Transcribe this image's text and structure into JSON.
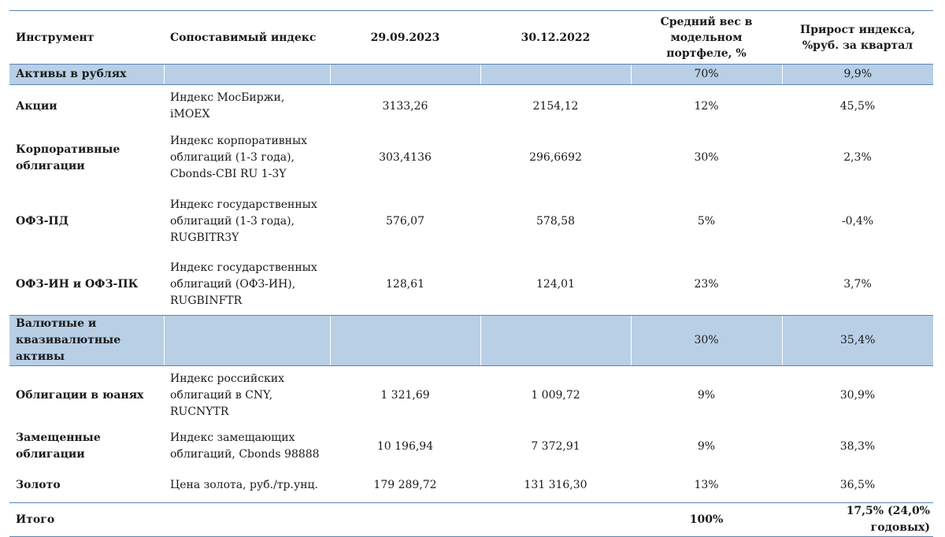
{
  "headers": [
    "Инструмент",
    "Сопоставимый индекс",
    "29.09.2023",
    "30.12.2022",
    "Средний вес в модельном портфеле, %",
    "Прирост индекса, %руб. за квартал"
  ],
  "group_rub": {
    "name": "Активы в рублях",
    "weight": "70%",
    "growth": "9,9%"
  },
  "rub_rows": [
    {
      "name": "Акции",
      "index": "Индекс МосБиржи, iMOEX",
      "v2023": "3133,26",
      "v2022": "2154,12",
      "weight": "12%",
      "growth": "45,5%"
    },
    {
      "name": "Корпоративные облигации",
      "index": "Индекс корпоративных облигаций (1-3 года), Cbonds-CBI RU 1-3Y",
      "v2023": "303,4136",
      "v2022": "296,6692",
      "weight": "30%",
      "growth": "2,3%"
    },
    {
      "name": "ОФЗ-ПД",
      "index": "Индекс государственных облигаций (1-3 года), RUGBITR3Y",
      "v2023": "576,07",
      "v2022": "578,58",
      "weight": "5%",
      "growth": "-0,4%"
    },
    {
      "name": "ОФЗ-ИН и ОФЗ-ПК",
      "index": "Индекс государственных облигаций (ОФЗ-ИН), RUGBINFTR",
      "v2023": "128,61",
      "v2022": "124,01",
      "weight": "23%",
      "growth": "3,7%"
    }
  ],
  "group_fx": {
    "name": "Валютные и квазивалютные активы",
    "weight": "30%",
    "growth": "35,4%"
  },
  "fx_rows": [
    {
      "name": "Облигации в юанях",
      "index": "Индекс российских облигаций в CNY, RUCNYTR",
      "v2023": "1 321,69",
      "v2022": "1 009,72",
      "weight": "9%",
      "growth": "30,9%"
    },
    {
      "name": "Замещенные облигации",
      "index": "Индекс замещающих облигаций, Cbonds 98888",
      "v2023": "10 196,94",
      "v2022": "7 372,91",
      "weight": "9%",
      "growth": "38,3%"
    },
    {
      "name": "Золото",
      "index": "Цена золота, руб./тр.унц.",
      "v2023": "179 289,72",
      "v2022": "131 316,30",
      "weight": "13%",
      "growth": "36,5%"
    }
  ],
  "total": {
    "name": "Итого",
    "weight": "100%",
    "growth": "17,5% (24,0% годовых)"
  }
}
